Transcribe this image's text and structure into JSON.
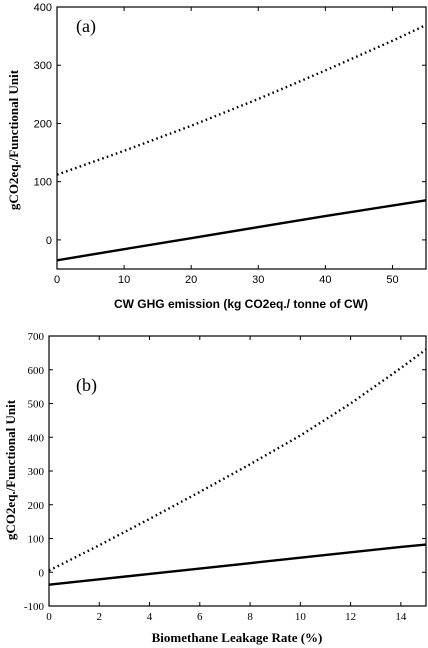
{
  "chart_data": [
    {
      "type": "line",
      "panel_label": "(a)",
      "title": "",
      "xlabel": "CW GHG emission (kg CO2eq./ tonne of CW)",
      "ylabel": "gCO2eq./Functional Unit",
      "xlim": [
        0,
        55
      ],
      "ylim": [
        -50,
        400
      ],
      "xticks": [
        0,
        10,
        20,
        30,
        40,
        50
      ],
      "yticks": [
        0,
        100,
        200,
        300,
        400
      ],
      "grid": false,
      "legend": "none",
      "series": [
        {
          "style": "dotted",
          "x": [
            0,
            10,
            20,
            30,
            40,
            50,
            55
          ],
          "y": [
            112,
            153,
            196,
            242,
            291,
            342,
            369
          ]
        },
        {
          "style": "solid",
          "x": [
            0,
            10,
            20,
            30,
            40,
            50,
            55
          ],
          "y": [
            -35,
            -16,
            3,
            22,
            41,
            59,
            68
          ]
        }
      ]
    },
    {
      "type": "line",
      "panel_label": "(b)",
      "title": "",
      "xlabel": "Biomethane Leakage Rate (%)",
      "ylabel": "gCO2eq./Functional Unit",
      "xlim": [
        0,
        15
      ],
      "ylim": [
        -100,
        700
      ],
      "xticks": [
        0,
        2,
        4,
        6,
        8,
        10,
        12,
        14
      ],
      "yticks": [
        -100,
        0,
        100,
        200,
        300,
        400,
        500,
        600,
        700
      ],
      "grid": false,
      "legend": "none",
      "series": [
        {
          "style": "dotted",
          "x": [
            0,
            2,
            4,
            6,
            8,
            10,
            12,
            14,
            15
          ],
          "y": [
            5,
            80,
            158,
            238,
            320,
            405,
            500,
            605,
            660
          ]
        },
        {
          "style": "solid",
          "x": [
            0,
            2,
            4,
            6,
            8,
            10,
            12,
            14,
            15
          ],
          "y": [
            -37,
            -21,
            -5,
            11,
            27,
            43,
            59,
            75,
            82
          ]
        }
      ]
    }
  ]
}
